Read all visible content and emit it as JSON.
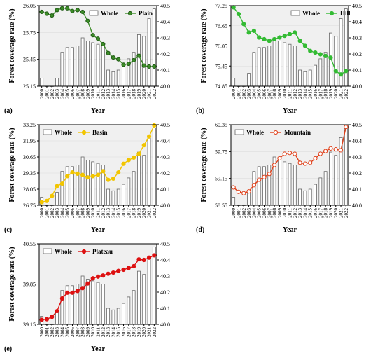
{
  "figure": {
    "panels": [
      "(a)",
      "(b)",
      "(c)",
      "(d)",
      "(e)"
    ]
  },
  "colors": {
    "plain": "#3c8c28",
    "hill": "#33bb33",
    "basin": "#f2c500",
    "mountain": "#e0401a",
    "plateau": "#dd1111",
    "whole_bar": "#ffffff"
  },
  "chart_data": [
    {
      "type": "bar+line",
      "panel_label": "(a)",
      "xlabel": "Year",
      "ylabel_left": "Forest coverage rate (%)",
      "ylabel_right": "",
      "x": [
        "2000",
        "2001",
        "2002",
        "2003",
        "2004",
        "2005",
        "2006",
        "2007",
        "2008",
        "2009",
        "2010",
        "2011",
        "2012",
        "2013",
        "2014",
        "2015",
        "2016",
        "2017",
        "2018",
        "2019",
        "2020",
        "2021",
        "2022"
      ],
      "left_ylim": [
        25.15,
        26.05
      ],
      "left_ticks": [
        "25.15",
        "25.45",
        "25.75",
        "26.05"
      ],
      "right_ylim": [
        40.0,
        40.5
      ],
      "right_ticks": [
        "40.0",
        "40.1",
        "40.2",
        "40.3",
        "40.4",
        "40.5"
      ],
      "legend": {
        "bar": "Whole",
        "line": "Plain",
        "placement": "top-center"
      },
      "line_values": [
        25.98,
        25.96,
        25.94,
        26.0,
        26.02,
        26.02,
        25.99,
        26.0,
        25.98,
        25.88,
        25.72,
        25.68,
        25.62,
        25.52,
        25.47,
        25.45,
        25.39,
        25.4,
        25.44,
        25.49,
        25.38,
        25.37,
        25.37
      ],
      "bar_values": [
        40.05,
        40.0,
        40.0,
        40.05,
        40.21,
        40.24,
        40.24,
        40.25,
        40.3,
        40.28,
        40.27,
        40.26,
        40.25,
        40.1,
        40.09,
        40.1,
        40.13,
        40.17,
        40.21,
        40.32,
        40.31,
        40.42,
        40.48
      ],
      "line_color_key": "plain"
    },
    {
      "type": "bar+line",
      "panel_label": "(b)",
      "xlabel": "Year",
      "ylabel_left": "Forest coverage rate (%)",
      "ylabel_right": "",
      "x": [
        "2000",
        "2001",
        "2002",
        "2003",
        "2004",
        "2005",
        "2006",
        "2007",
        "2008",
        "2009",
        "2010",
        "2011",
        "2012",
        "2013",
        "2014",
        "2015",
        "2016",
        "2017",
        "2018",
        "2019",
        "2020",
        "2021",
        "2022"
      ],
      "left_ylim": [
        74.85,
        77.25
      ],
      "left_ticks": [
        "74.85",
        "75.45",
        "76.05",
        "76.65",
        "77.25"
      ],
      "right_ylim": [
        40.0,
        40.5
      ],
      "right_ticks": [
        "40.0",
        "40.1",
        "40.2",
        "40.3",
        "40.4",
        "40.5"
      ],
      "legend": {
        "bar": "Whole",
        "line": "Hill",
        "placement": "top-right"
      },
      "line_values": [
        77.2,
        77.0,
        76.7,
        76.45,
        76.5,
        76.3,
        76.25,
        76.2,
        76.25,
        76.3,
        76.35,
        76.4,
        76.45,
        76.2,
        76.05,
        75.9,
        75.85,
        75.8,
        75.75,
        75.7,
        75.3,
        75.2,
        75.3
      ],
      "bar_values": [
        40.05,
        40.0,
        40.0,
        40.08,
        40.21,
        40.24,
        40.24,
        40.25,
        40.3,
        40.28,
        40.27,
        40.26,
        40.25,
        40.1,
        40.09,
        40.1,
        40.13,
        40.17,
        40.21,
        40.33,
        40.31,
        40.42,
        40.48
      ],
      "line_color_key": "hill"
    },
    {
      "type": "bar+line",
      "panel_label": "(c)",
      "xlabel": "Year",
      "ylabel_left": "Forest coverage rate (%)",
      "ylabel_right": "",
      "x": [
        "2000",
        "2001",
        "2002",
        "2003",
        "2004",
        "2005",
        "2006",
        "2007",
        "2008",
        "2009",
        "2010",
        "2011",
        "2012",
        "2013",
        "2014",
        "2015",
        "2016",
        "2017",
        "2018",
        "2019",
        "2020",
        "2021",
        "2022"
      ],
      "left_ylim": [
        26.75,
        33.25
      ],
      "left_ticks": [
        "26.75",
        "28.05",
        "29.35",
        "30.65",
        "31.95",
        "33.25"
      ],
      "right_ylim": [
        40.0,
        40.5
      ],
      "right_ticks": [
        "40.0",
        "40.1",
        "40.2",
        "40.3",
        "40.4",
        "40.5"
      ],
      "legend": {
        "bar": "Whole",
        "line": "Basin",
        "placement": "top-left"
      },
      "line_values": [
        27.0,
        27.1,
        27.5,
        28.3,
        28.5,
        29.1,
        29.4,
        29.3,
        29.2,
        29.0,
        29.1,
        29.2,
        29.5,
        28.8,
        28.9,
        29.4,
        30.1,
        30.4,
        30.6,
        30.9,
        31.6,
        32.3,
        33.2
      ],
      "bar_values": [
        40.05,
        40.0,
        40.0,
        40.08,
        40.21,
        40.24,
        40.24,
        40.25,
        40.3,
        40.28,
        40.27,
        40.26,
        40.25,
        40.1,
        40.09,
        40.1,
        40.13,
        40.17,
        40.21,
        40.33,
        40.31,
        40.42,
        40.48
      ],
      "line_color_key": "basin"
    },
    {
      "type": "bar+line",
      "panel_label": "(d)",
      "xlabel": "Year",
      "ylabel_left": "Forest coverage rate (%)",
      "ylabel_right": "",
      "x": [
        "2000",
        "2001",
        "2002",
        "2003",
        "2004",
        "2005",
        "2006",
        "2007",
        "2008",
        "2009",
        "2010",
        "2011",
        "2012",
        "2013",
        "2014",
        "2015",
        "2016",
        "2017",
        "2018",
        "2019",
        "2020",
        "2021",
        "2022"
      ],
      "left_ylim": [
        58.55,
        60.35
      ],
      "left_ticks": [
        "58.55",
        "59.15",
        "59.75",
        "60.35"
      ],
      "right_ylim": [
        40.0,
        40.5
      ],
      "right_ticks": [
        "40.0",
        "40.1",
        "40.2",
        "40.3",
        "40.4",
        "40.5"
      ],
      "legend": {
        "bar": "Whole",
        "line": "Mountain",
        "placement": "top-left"
      },
      "line_values": [
        58.95,
        58.85,
        58.82,
        58.86,
        59.0,
        59.12,
        59.18,
        59.25,
        59.45,
        59.6,
        59.7,
        59.72,
        59.7,
        59.5,
        59.48,
        59.5,
        59.6,
        59.7,
        59.76,
        59.82,
        59.8,
        59.78,
        60.3
      ],
      "bar_values": [
        40.05,
        40.0,
        40.0,
        40.08,
        40.21,
        40.24,
        40.24,
        40.25,
        40.3,
        40.28,
        40.27,
        40.26,
        40.25,
        40.1,
        40.09,
        40.1,
        40.13,
        40.17,
        40.21,
        40.33,
        40.31,
        40.42,
        40.48
      ],
      "line_color_key": "mountain"
    },
    {
      "type": "bar+line",
      "panel_label": "(e)",
      "xlabel": "Year",
      "ylabel_left": "Forest coverage rate (%)",
      "ylabel_right": "",
      "x": [
        "2000",
        "2001",
        "2002",
        "2003",
        "2004",
        "2005",
        "2006",
        "2007",
        "2008",
        "2009",
        "2010",
        "2011",
        "2012",
        "2013",
        "2014",
        "2015",
        "2016",
        "2017",
        "2018",
        "2019",
        "2020",
        "2021",
        "2022"
      ],
      "left_ylim": [
        39.15,
        40.55
      ],
      "left_ticks": [
        "39.15",
        "39.85",
        "40.55"
      ],
      "right_ylim": [
        40.0,
        40.5
      ],
      "right_ticks": [
        "40.0",
        "40.1",
        "40.2",
        "40.3",
        "40.4",
        "40.5"
      ],
      "legend": {
        "bar": "Whole",
        "line": "Plateau",
        "placement": "top-left"
      },
      "line_values": [
        39.23,
        39.24,
        39.28,
        39.38,
        39.6,
        39.7,
        39.7,
        39.73,
        39.78,
        39.86,
        39.95,
        39.98,
        40.0,
        40.03,
        40.05,
        40.08,
        40.1,
        40.13,
        40.16,
        40.28,
        40.27,
        40.31,
        40.35
      ],
      "bar_values": [
        40.05,
        40.0,
        40.0,
        40.08,
        40.21,
        40.24,
        40.24,
        40.25,
        40.3,
        40.28,
        40.27,
        40.26,
        40.25,
        40.1,
        40.09,
        40.1,
        40.13,
        40.17,
        40.21,
        40.33,
        40.31,
        40.42,
        40.48
      ],
      "line_color_key": "plateau"
    }
  ]
}
